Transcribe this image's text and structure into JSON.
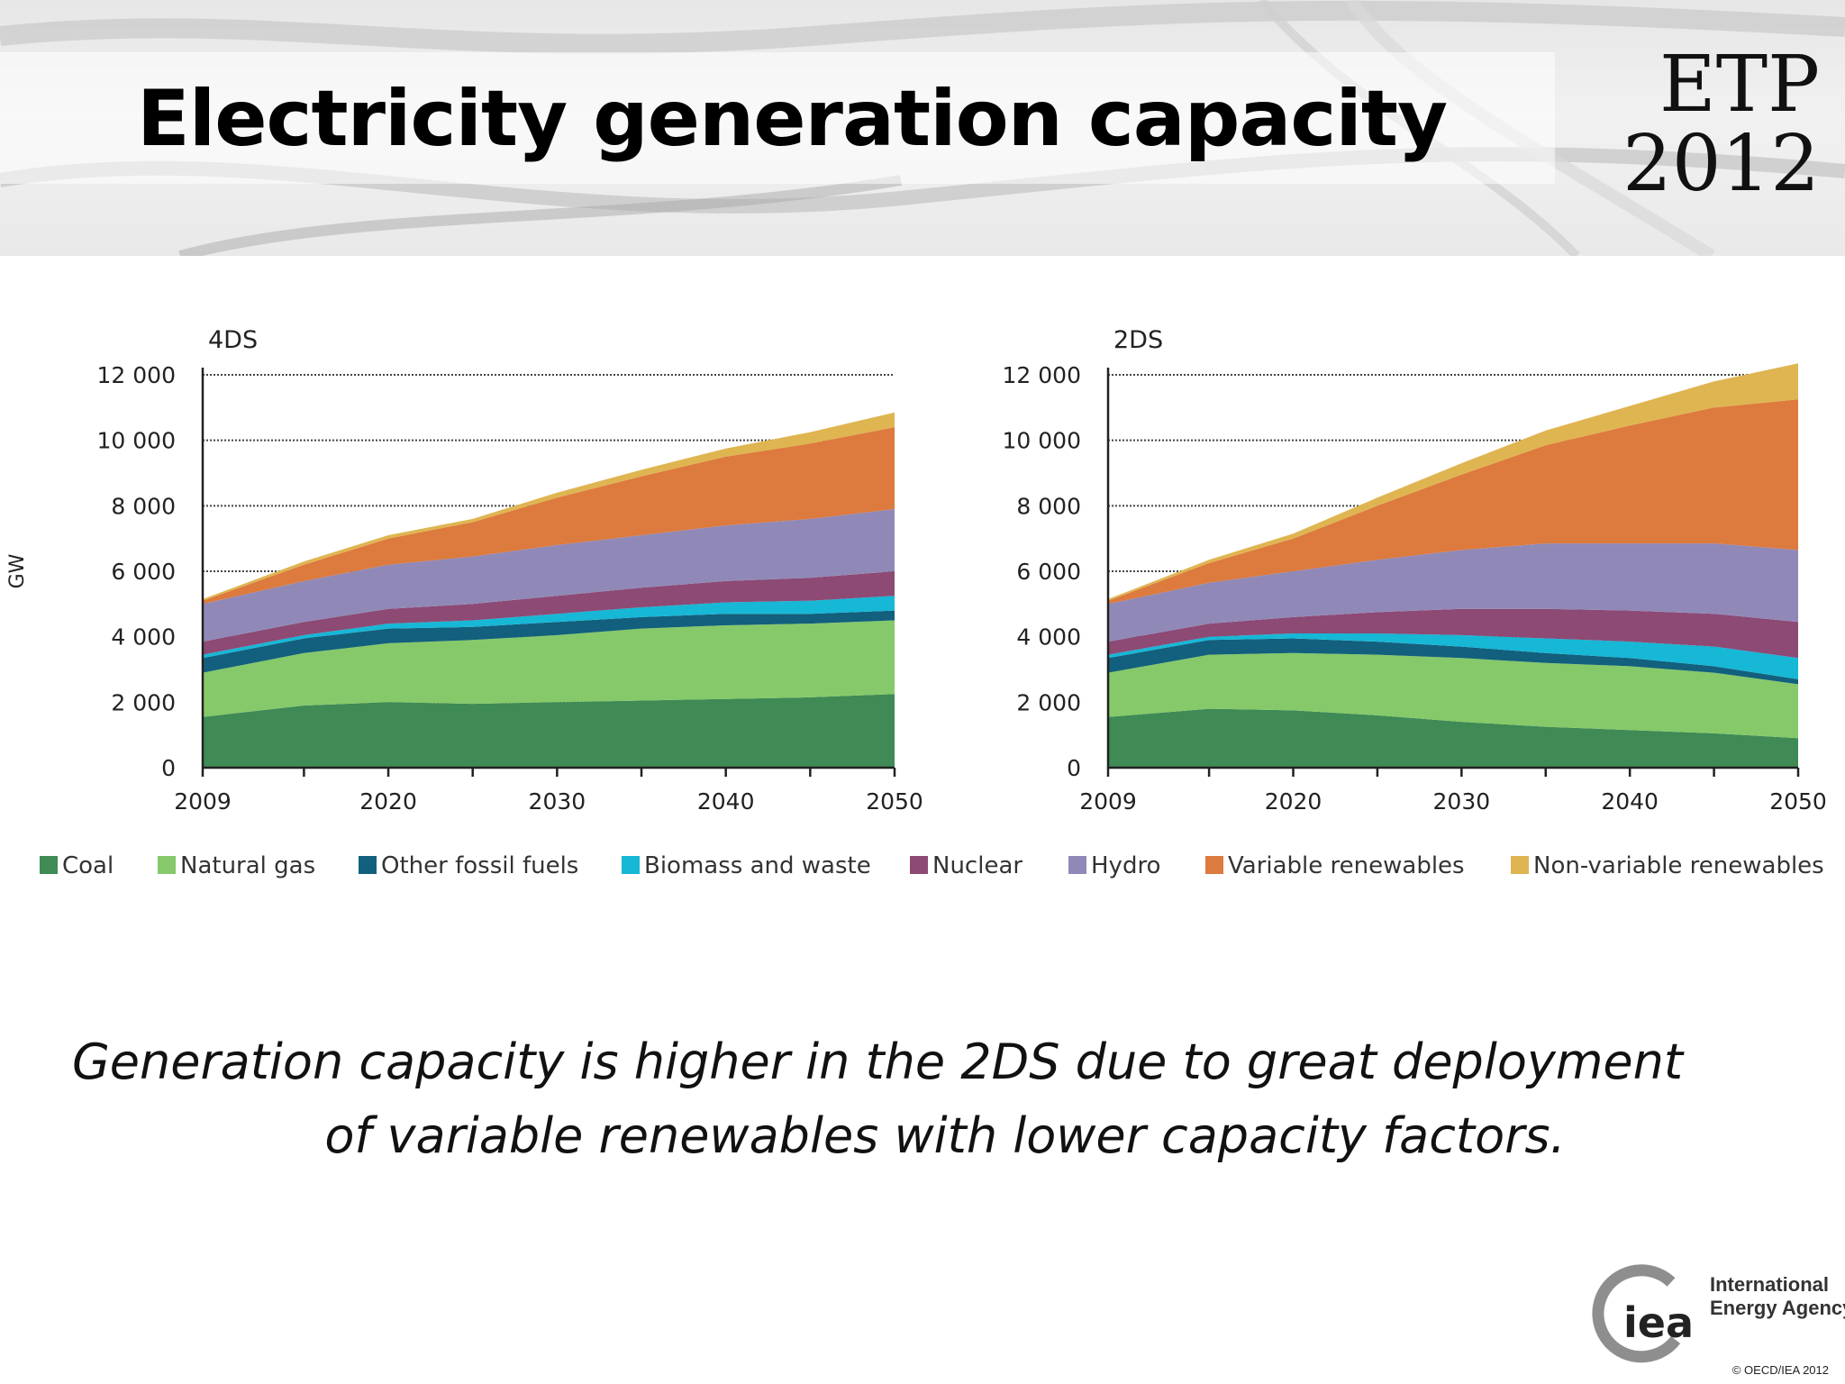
{
  "title": "Electricity generation capacity",
  "logo": {
    "line1": "ETP",
    "line2": "2012"
  },
  "caption": {
    "line1": "Generation capacity is higher in the 2DS due to great deployment",
    "line2": "of variable renewables with lower capacity factors."
  },
  "iea": {
    "mark": "iea",
    "name_line1": "International",
    "name_line2": "Energy Agency",
    "copyright": "© OECD/IEA 2012"
  },
  "colors": {
    "Coal": "#3f8a55",
    "Natural gas": "#86c96a",
    "Other fossil fuels": "#12607d",
    "Biomass and waste": "#17b7d6",
    "Nuclear": "#8c4a74",
    "Hydro": "#9089b8",
    "Variable renewables": "#dd7a3e",
    "Non-variable renewables": "#dfb551"
  },
  "chart_data": [
    {
      "type": "area",
      "stacked": true,
      "title": "4DS",
      "ylabel": "GW",
      "ylim": [
        0,
        12000
      ],
      "yticks": [
        0,
        2000,
        4000,
        6000,
        8000,
        10000,
        12000
      ],
      "ytick_labels": [
        "0",
        "2 000",
        "4 000",
        "6 000",
        "8 000",
        "10 000",
        "12 000"
      ],
      "xlim": [
        2009,
        2050
      ],
      "xticks": [
        2009,
        2020,
        2030,
        2040,
        2050
      ],
      "minor_xticks": [
        2015,
        2025,
        2035,
        2045
      ],
      "grid": "horizontal dotted",
      "legend": "bottom",
      "x": [
        2009,
        2015,
        2020,
        2025,
        2030,
        2035,
        2040,
        2045,
        2050
      ],
      "series": [
        {
          "name": "Coal",
          "values": [
            1550,
            1900,
            2000,
            1950,
            2000,
            2050,
            2100,
            2150,
            2250
          ]
        },
        {
          "name": "Natural gas",
          "values": [
            1350,
            1600,
            1800,
            1950,
            2050,
            2200,
            2250,
            2250,
            2250
          ]
        },
        {
          "name": "Other fossil fuels",
          "values": [
            450,
            450,
            450,
            400,
            400,
            350,
            350,
            300,
            300
          ]
        },
        {
          "name": "Biomass and waste",
          "values": [
            100,
            100,
            150,
            200,
            250,
            300,
            350,
            400,
            450
          ]
        },
        {
          "name": "Nuclear",
          "values": [
            400,
            400,
            450,
            500,
            550,
            600,
            650,
            700,
            750
          ]
        },
        {
          "name": "Hydro",
          "values": [
            1150,
            1250,
            1350,
            1450,
            1550,
            1600,
            1700,
            1800,
            1900
          ]
        },
        {
          "name": "Variable renewables",
          "values": [
            100,
            500,
            800,
            1050,
            1450,
            1800,
            2100,
            2300,
            2500
          ]
        },
        {
          "name": "Non-variable renewables",
          "values": [
            50,
            100,
            100,
            100,
            150,
            200,
            250,
            350,
            450
          ]
        }
      ]
    },
    {
      "type": "area",
      "stacked": true,
      "title": "2DS",
      "ylabel": "",
      "ylim": [
        0,
        12000
      ],
      "yticks": [
        0,
        2000,
        4000,
        6000,
        8000,
        10000,
        12000
      ],
      "ytick_labels": [
        "0",
        "2 000",
        "4 000",
        "6 000",
        "8 000",
        "10 000",
        "12 000"
      ],
      "xlim": [
        2009,
        2050
      ],
      "xticks": [
        2009,
        2020,
        2030,
        2040,
        2050
      ],
      "minor_xticks": [
        2015,
        2025,
        2035,
        2045
      ],
      "grid": "horizontal dotted",
      "legend": "bottom",
      "x": [
        2009,
        2015,
        2020,
        2025,
        2030,
        2035,
        2040,
        2045,
        2050
      ],
      "series": [
        {
          "name": "Coal",
          "values": [
            1550,
            1800,
            1750,
            1600,
            1400,
            1250,
            1150,
            1050,
            900
          ]
        },
        {
          "name": "Natural gas",
          "values": [
            1350,
            1650,
            1750,
            1850,
            1950,
            1950,
            1950,
            1850,
            1650
          ]
        },
        {
          "name": "Other fossil fuels",
          "values": [
            450,
            450,
            450,
            400,
            350,
            300,
            250,
            200,
            150
          ]
        },
        {
          "name": "Biomass and waste",
          "values": [
            100,
            100,
            150,
            250,
            350,
            450,
            500,
            600,
            650
          ]
        },
        {
          "name": "Nuclear",
          "values": [
            400,
            400,
            500,
            650,
            800,
            900,
            950,
            1000,
            1100
          ]
        },
        {
          "name": "Hydro",
          "values": [
            1150,
            1250,
            1400,
            1600,
            1800,
            2000,
            2050,
            2150,
            2200
          ]
        },
        {
          "name": "Variable renewables",
          "values": [
            100,
            600,
            1000,
            1650,
            2300,
            3000,
            3600,
            4150,
            4600
          ]
        },
        {
          "name": "Non-variable renewables",
          "values": [
            50,
            100,
            150,
            250,
            350,
            450,
            600,
            800,
            1100
          ]
        }
      ]
    }
  ]
}
